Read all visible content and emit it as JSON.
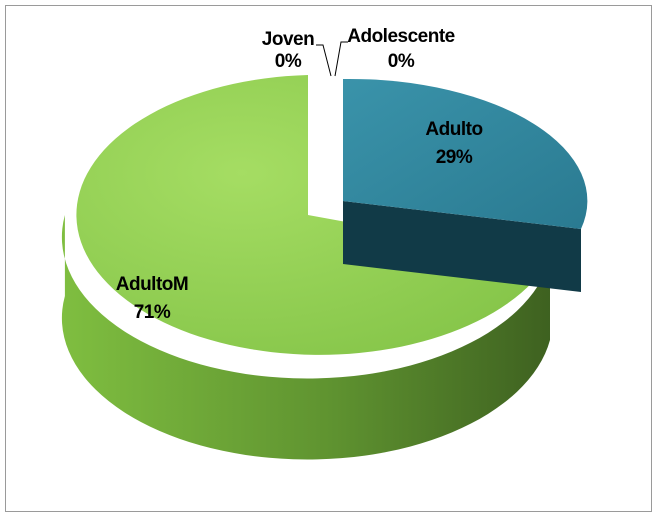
{
  "chart_data": {
    "type": "pie",
    "style": "3d-exploded",
    "slices": [
      {
        "label": "Joven",
        "value": 0,
        "pct_label": "0%"
      },
      {
        "label": "Adolescente",
        "value": 0,
        "pct_label": "0%"
      },
      {
        "label": "Adulto",
        "value": 29,
        "pct_label": "29%",
        "color": "#31859C"
      },
      {
        "label": "AdultoM",
        "value": 71,
        "pct_label": "71%",
        "color": "#92D050"
      }
    ],
    "legend": "none"
  }
}
